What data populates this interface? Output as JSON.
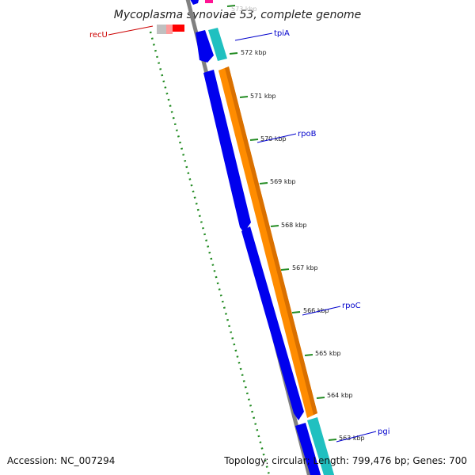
{
  "title": "Mycoplasma synoviae 53, complete genome",
  "footer": {
    "accession": "Accession: NC_007294",
    "summary": "Topology: circular; Length: 799,476 bp; Genes: 700"
  },
  "tick_labels": [
    "572 kbp",
    "571 kbp",
    "570 kbp",
    "569 kbp",
    "568 kbp",
    "567 kbp",
    "566 kbp",
    "565 kbp",
    "564 kbp",
    "563 kbp"
  ],
  "partial_tick_label": "573 kbp",
  "genes": [
    {
      "name": "recU",
      "strand": "reverse",
      "color": "#cc0000"
    },
    {
      "name": "tpiA",
      "strand": "forward",
      "color": "#0000cc"
    },
    {
      "name": "rpoB",
      "strand": "forward",
      "color": "#0000cc"
    },
    {
      "name": "rpoC",
      "strand": "forward",
      "color": "#0000cc"
    },
    {
      "name": "pgi",
      "strand": "forward",
      "color": "#0000cc"
    }
  ],
  "colors": {
    "backbone": "#808080",
    "cds": "#0000ee",
    "gene_feature": "#ff8c00",
    "rrna_like": "#20c0c0",
    "gc_skew": "#228b22",
    "highlight_red": "#ff0000",
    "highlight_pink": "#ff69b4"
  }
}
